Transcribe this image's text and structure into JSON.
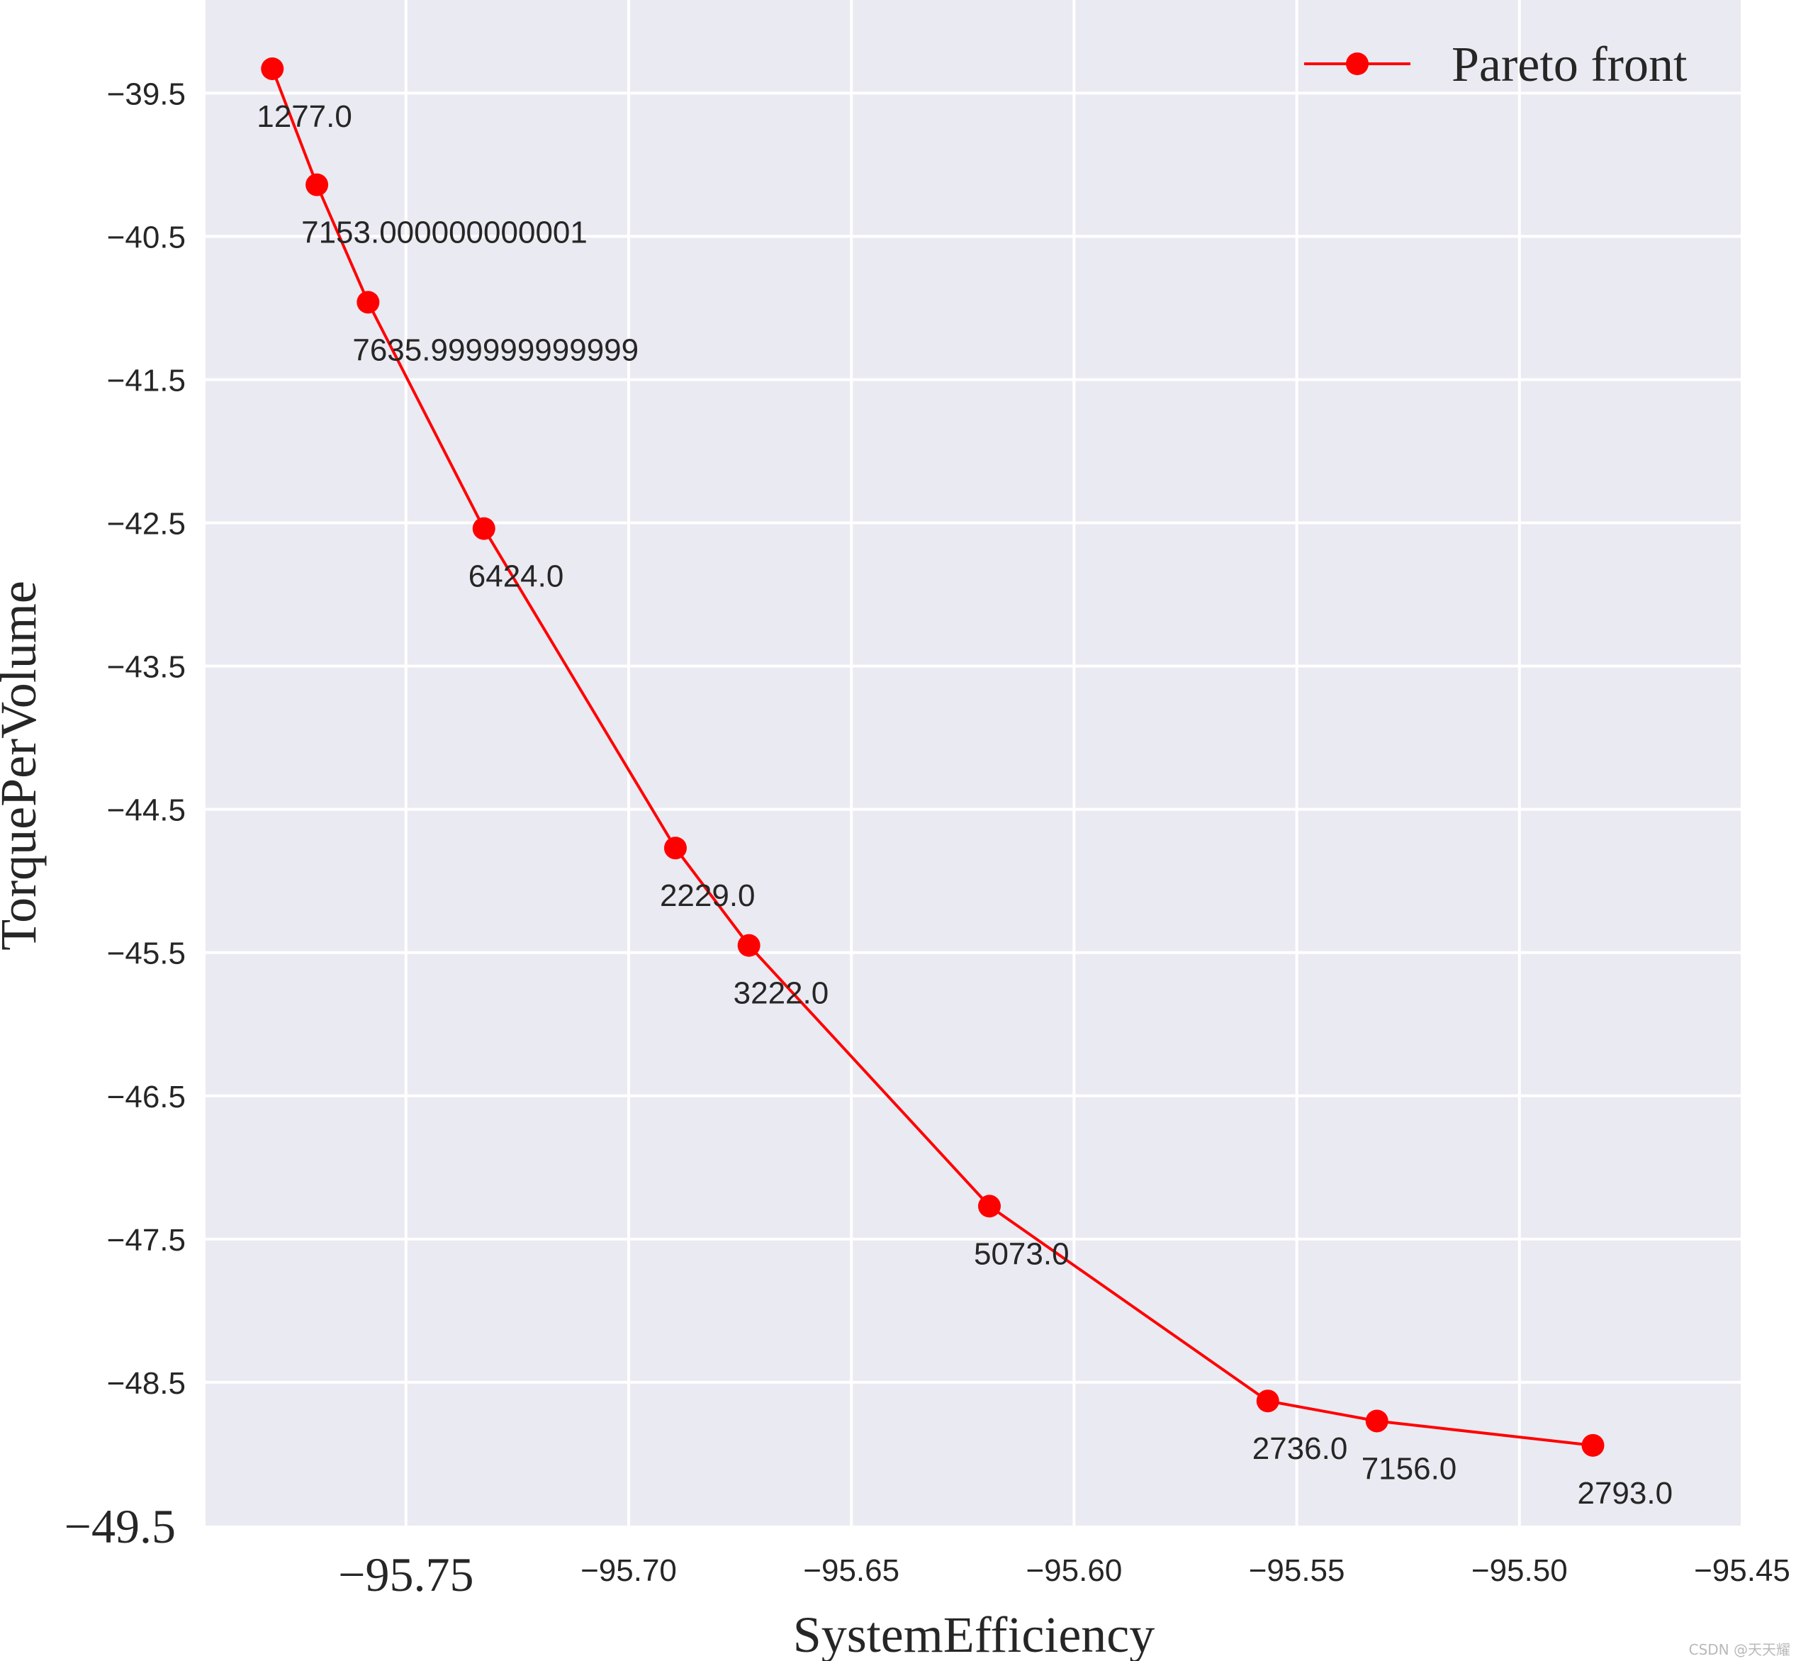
{
  "chart_data": {
    "type": "line",
    "xlabel": "SystemEfficiency",
    "ylabel": "TorquePerVolume",
    "xlim": [
      -95.795,
      -95.45
    ],
    "ylim": [
      -49.5,
      -38.85
    ],
    "grid": true,
    "marker": "circle",
    "line_color": "#ff0000",
    "background_color": "#eaeaf2",
    "grid_color": "#ffffff",
    "legend": {
      "location": "top-right",
      "entries": [
        "Pareto front"
      ]
    },
    "series": [
      {
        "name": "Pareto front",
        "x": [
          -95.78,
          -95.77,
          -95.7585,
          -95.7325,
          -95.6895,
          -95.673,
          -95.619,
          -95.5565,
          -95.532,
          -95.4835
        ],
        "y": [
          -39.33,
          -40.14,
          -40.96,
          -42.54,
          -44.77,
          -45.45,
          -47.27,
          -48.63,
          -48.77,
          -48.94
        ],
        "labels": [
          "1277.0",
          "7153.000000000001",
          "7635.999999999999",
          "6424.0",
          "2229.0",
          "3222.0",
          "5073.0",
          "2736.0",
          "7156.0",
          "2793.0"
        ]
      }
    ],
    "xticks": [
      {
        "value": -95.75,
        "label": "−95.75",
        "big": true
      },
      {
        "value": -95.7,
        "label": "−95.70",
        "big": false
      },
      {
        "value": -95.65,
        "label": "−95.65",
        "big": false
      },
      {
        "value": -95.6,
        "label": "−95.60",
        "big": false
      },
      {
        "value": -95.55,
        "label": "−95.55",
        "big": false
      },
      {
        "value": -95.5,
        "label": "−95.50",
        "big": false
      },
      {
        "value": -95.45,
        "label": "−95.45",
        "big": false
      }
    ],
    "yticks": [
      {
        "value": -39.5,
        "label": "−39.5",
        "big": false
      },
      {
        "value": -40.5,
        "label": "−40.5",
        "big": false
      },
      {
        "value": -41.5,
        "label": "−41.5",
        "big": false
      },
      {
        "value": -42.5,
        "label": "−42.5",
        "big": false
      },
      {
        "value": -43.5,
        "label": "−43.5",
        "big": false
      },
      {
        "value": -44.5,
        "label": "−44.5",
        "big": false
      },
      {
        "value": -45.5,
        "label": "−45.5",
        "big": false
      },
      {
        "value": -46.5,
        "label": "−46.5",
        "big": false
      },
      {
        "value": -47.5,
        "label": "−47.5",
        "big": false
      },
      {
        "value": -48.5,
        "label": "−48.5",
        "big": false
      },
      {
        "value": -49.5,
        "label": "−49.5",
        "big": true
      }
    ]
  },
  "watermark": "CSDN @天天耀"
}
